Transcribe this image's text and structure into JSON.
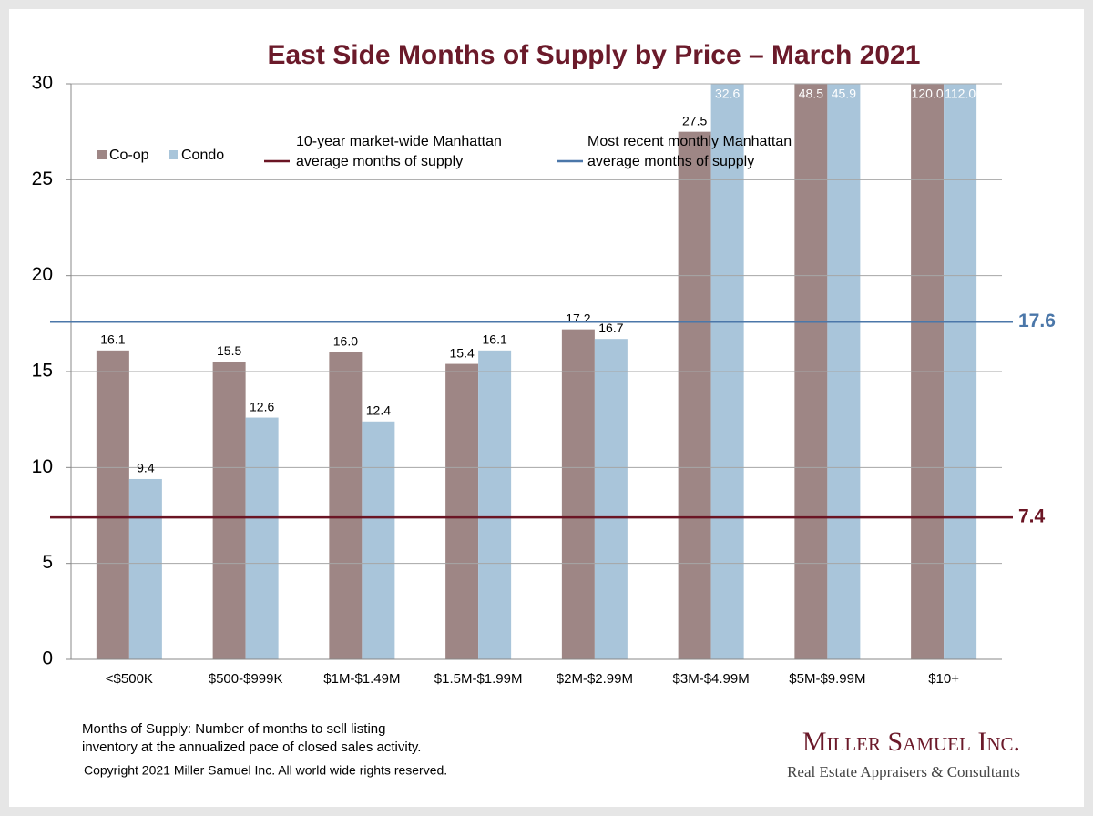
{
  "chart_data": {
    "type": "bar",
    "title": "East Side Months of Supply by Price – March 2021",
    "categories": [
      "<$500K",
      "$500-$999K",
      "$1M-$1.49M",
      "$1.5M-$1.99M",
      "$2M-$2.99M",
      "$3M-$4.99M",
      "$5M-$9.99M",
      "$10+"
    ],
    "series": [
      {
        "name": "Co-op",
        "color": "#9e8685",
        "values": [
          16.1,
          15.5,
          16.0,
          15.4,
          17.2,
          27.5,
          48.5,
          120.0
        ],
        "value_labels": [
          "16.1",
          "15.5",
          "16.0",
          "15.4",
          "17.2",
          "27.5",
          "48.5",
          "120.0"
        ]
      },
      {
        "name": "Condo",
        "color": "#a9c5da",
        "values": [
          9.4,
          12.6,
          12.4,
          16.1,
          16.7,
          32.6,
          45.9,
          112.0
        ],
        "value_labels": [
          "9.4",
          "12.6",
          "12.4",
          "16.1",
          "16.7",
          "32.6",
          "45.9",
          "112.0"
        ]
      }
    ],
    "reference_lines": [
      {
        "name": [
          "10-year  market-wide Manhattan",
          "average months of supply"
        ],
        "value": 7.4,
        "color": "#6b1524"
      },
      {
        "name": [
          "Most recent monthly Manhattan",
          "average months of supply"
        ],
        "value": 17.6,
        "color": "#4b77a9"
      }
    ],
    "ylim": [
      0,
      30
    ],
    "yticks": [
      0,
      5,
      10,
      15,
      20,
      25,
      30
    ],
    "grid": true,
    "footnote": [
      "Months of Supply: Number of months to sell listing",
      "inventory at the annualized pace of closed sales activity."
    ],
    "copyright": "Copyright 2021 Miller Samuel Inc.  All world wide rights reserved.",
    "logo": {
      "name": "Miller Samuel Inc.",
      "tagline": "Real Estate Appraisers & Consultants"
    }
  }
}
